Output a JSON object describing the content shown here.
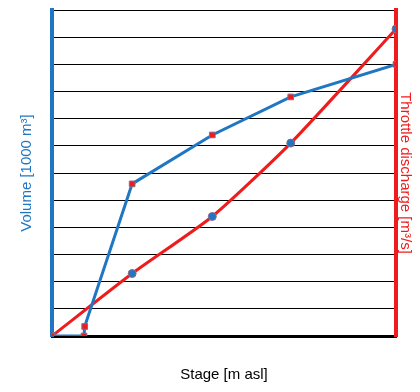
{
  "chart_data": {
    "type": "line",
    "xlabel": "Stage [m asl]",
    "ylabel": "Volume [1000 m³]",
    "y2label": "Throttle discharge [m³/s]",
    "xlim": [
      0,
      10
    ],
    "xticks": [
      0,
      10
    ],
    "ylim": [
      0,
      12
    ],
    "yticks": [
      0,
      1,
      2,
      3,
      4,
      5,
      6,
      7,
      8,
      9,
      10,
      11,
      12
    ],
    "y2lim": [
      0,
      12
    ],
    "y2ticks": [
      0,
      1,
      2,
      3,
      4,
      5,
      6,
      7,
      8,
      9,
      10,
      11,
      12
    ],
    "grid": true,
    "tick_labels": false,
    "series": [
      {
        "name": "Volume",
        "color": "#1f77c4",
        "marker": "square",
        "axis": "y",
        "x": [
          0,
          0.93,
          0.95,
          2.33,
          4.66,
          6.94,
          10
        ],
        "values": [
          0,
          0,
          0.35,
          5.6,
          7.4,
          8.8,
          10.0
        ]
      },
      {
        "name": "Throttle discharge",
        "color": "#ee1c1c",
        "marker": "circle",
        "axis": "y2",
        "x": [
          0,
          2.33,
          4.66,
          6.94,
          10
        ],
        "values": [
          0,
          2.3,
          4.4,
          7.1,
          11.3
        ]
      }
    ]
  }
}
